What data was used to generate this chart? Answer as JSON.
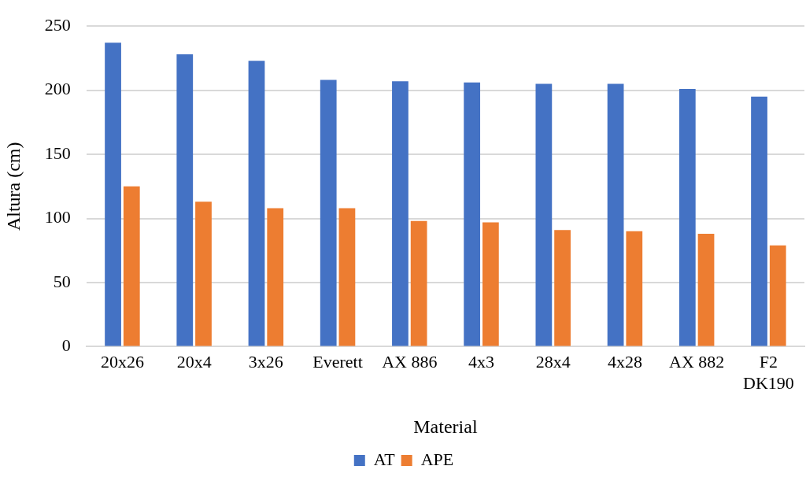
{
  "chart_data": {
    "type": "bar",
    "xlabel": "Material",
    "ylabel": "Altura (cm)",
    "categories": [
      "20x26",
      "20x4",
      "3x26",
      "Everett",
      "AX 886",
      "4x3",
      "28x4",
      "4x28",
      "AX 882",
      "F2 DK190"
    ],
    "series": [
      {
        "name": "AT",
        "color": "#4472c4",
        "values": [
          237,
          228,
          223,
          208,
          207,
          206,
          205,
          205,
          201,
          195
        ]
      },
      {
        "name": "APE",
        "color": "#ed7d31",
        "values": [
          125,
          113,
          108,
          108,
          98,
          97,
          91,
          90,
          88,
          79
        ]
      }
    ],
    "ylim": [
      0,
      250
    ],
    "yticks": [
      0,
      50,
      100,
      150,
      200,
      250
    ],
    "grid": "y",
    "legend": "bottom"
  }
}
